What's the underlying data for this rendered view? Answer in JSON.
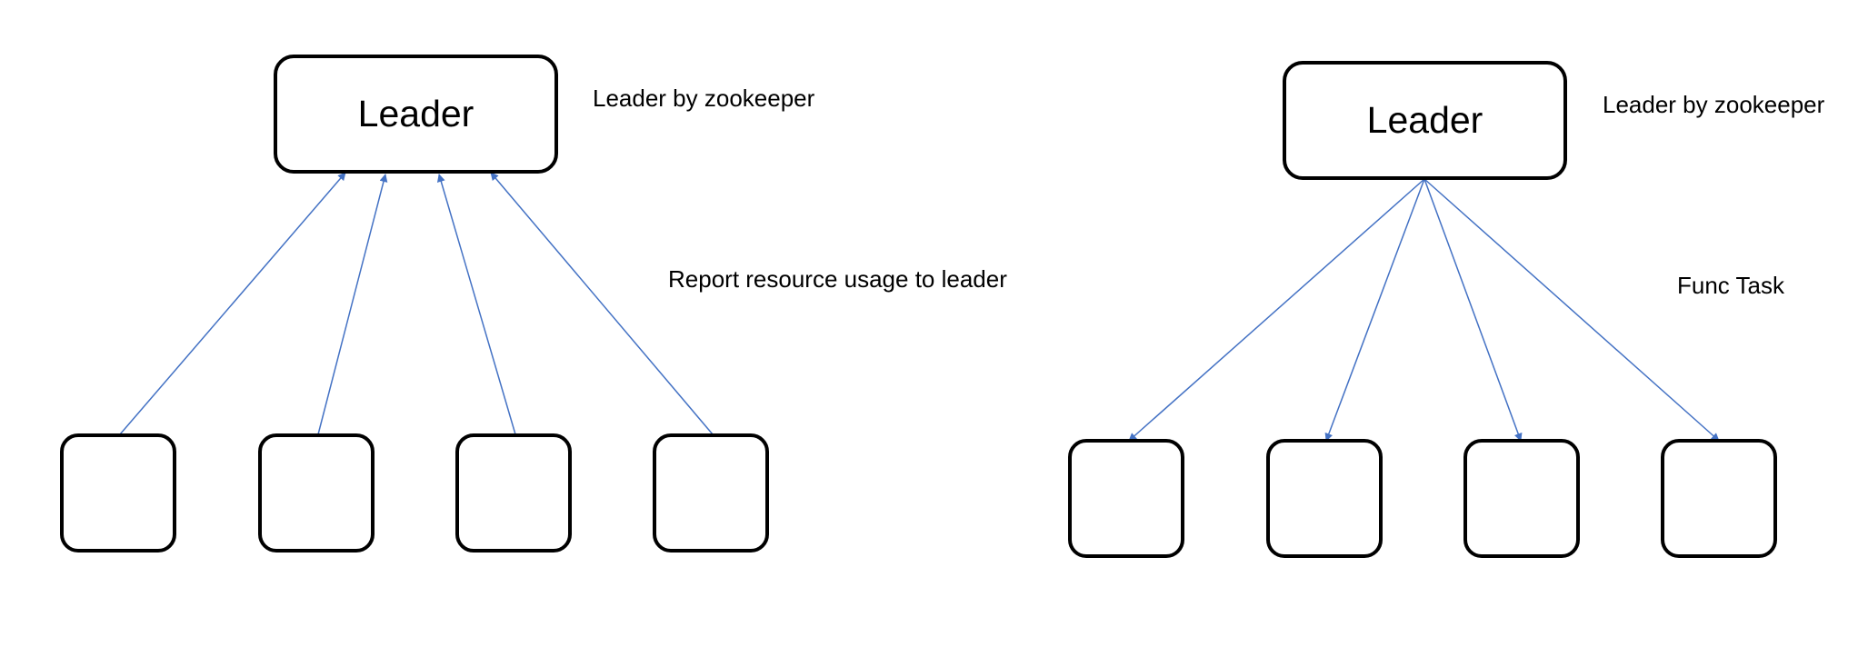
{
  "colors": {
    "arrow": "#4472C4",
    "box_border": "#000000",
    "text": "#000000",
    "background": "#ffffff"
  },
  "left_diagram": {
    "leader_label": "Leader",
    "side_note": "Leader by zookeeper",
    "arrow_label": "Report resource usage to leader",
    "arrow_direction": "workers-to-leader",
    "worker_count": 4
  },
  "right_diagram": {
    "leader_label": "Leader",
    "side_note": "Leader by zookeeper",
    "arrow_label": "Func Task",
    "arrow_direction": "leader-to-workers",
    "worker_count": 4
  }
}
